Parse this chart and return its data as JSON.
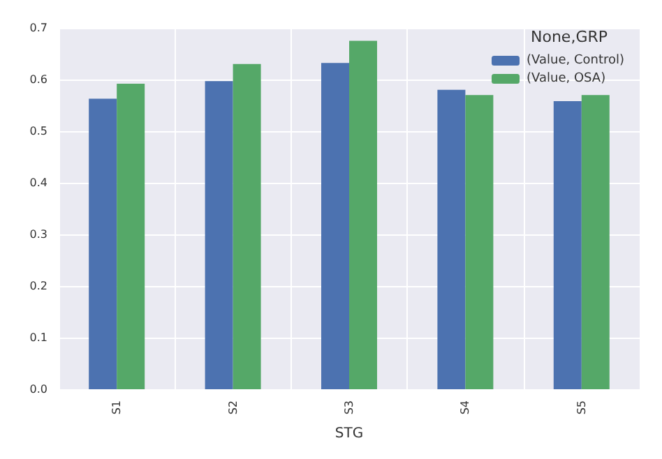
{
  "chart_data": {
    "type": "bar",
    "xlabel": "STG",
    "legend_title": "None,GRP",
    "categories": [
      "S1",
      "S2",
      "S3",
      "S4",
      "S5"
    ],
    "series": [
      {
        "name": "(Value, Control)",
        "color": "#4c72b0",
        "values": [
          0.563,
          0.597,
          0.632,
          0.58,
          0.558
        ]
      },
      {
        "name": "(Value, OSA)",
        "color": "#55a868",
        "values": [
          0.592,
          0.63,
          0.675,
          0.57,
          0.57
        ]
      }
    ],
    "ylim": [
      0,
      0.7
    ],
    "yticks": [
      {
        "value": 0,
        "label": "0.0"
      },
      0.1,
      0.2,
      0.3,
      0.4,
      0.5,
      0.6,
      0.7
    ],
    "grid": true,
    "legend": "top right"
  }
}
